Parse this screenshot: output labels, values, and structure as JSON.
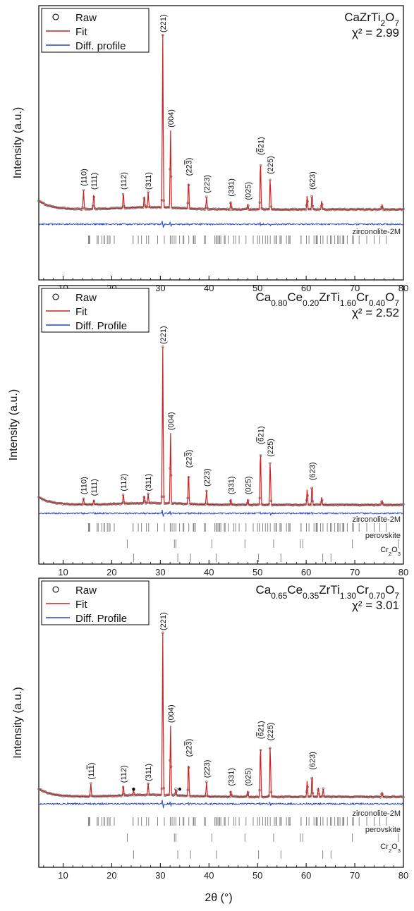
{
  "colors": {
    "raw": "#777777",
    "fit": "#cc2222",
    "diff": "#2244cc",
    "ticks": "#888888"
  },
  "xlabel": "2θ (°)",
  "ylabel": "Intensity (a.u.)",
  "chart_data": [
    {
      "type": "line",
      "title": "CaZrTi2O7",
      "chi2": "χ² = 2.99",
      "xlim": [
        5,
        80
      ],
      "xticks": [
        10,
        20,
        30,
        40,
        50,
        60,
        70,
        80
      ],
      "legend": [
        "Raw",
        "Fit",
        "Diff. profile"
      ],
      "peaks": [
        {
          "x": 14.2,
          "h": 0.11,
          "hkl": "(110)"
        },
        {
          "x": 16.3,
          "h": 0.09,
          "hkl": "(111)"
        },
        {
          "x": 22.4,
          "h": 0.09,
          "hkl": "(112)"
        },
        {
          "x": 26.7,
          "h": 0.07,
          "hkl": ""
        },
        {
          "x": 27.5,
          "h": 0.09,
          "hkl": "(311)"
        },
        {
          "x": 30.5,
          "h": 1.0,
          "hkl": "(221)"
        },
        {
          "x": 32.1,
          "h": 0.45,
          "hkl": "(004)"
        },
        {
          "x": 35.8,
          "h": 0.17,
          "hkl": "(22-3)"
        },
        {
          "x": 39.5,
          "h": 0.07,
          "hkl": "(223)"
        },
        {
          "x": 44.5,
          "h": 0.05,
          "hkl": "(331)"
        },
        {
          "x": 48.0,
          "h": 0.03,
          "hkl": "(025)"
        },
        {
          "x": 50.6,
          "h": 0.29,
          "hkl": "(-621)"
        },
        {
          "x": 52.6,
          "h": 0.18,
          "hkl": "(225)"
        },
        {
          "x": 60.2,
          "h": 0.08,
          "hkl": ""
        },
        {
          "x": 61.2,
          "h": 0.09,
          "hkl": "(623)"
        },
        {
          "x": 63.2,
          "h": 0.05,
          "hkl": ""
        },
        {
          "x": 75.6,
          "h": 0.03,
          "hkl": ""
        }
      ],
      "phases": [
        "zirconolite-2M"
      ]
    },
    {
      "type": "line",
      "title": "Ca0.80Ce0.20ZrTi1.60Cr0.40O7",
      "chi2": "χ² = 2.52",
      "xlim": [
        5,
        80
      ],
      "xticks": [
        10,
        20,
        30,
        40,
        50,
        60,
        70,
        80
      ],
      "legend": [
        "Raw",
        "Fit",
        "Diff. Profile"
      ],
      "peaks": [
        {
          "x": 14.2,
          "h": 0.04,
          "hkl": "(110)"
        },
        {
          "x": 16.3,
          "h": 0.03,
          "hkl": "(111)"
        },
        {
          "x": 22.4,
          "h": 0.06,
          "hkl": "(112)"
        },
        {
          "x": 26.7,
          "h": 0.05,
          "hkl": ""
        },
        {
          "x": 27.5,
          "h": 0.06,
          "hkl": "(311)"
        },
        {
          "x": 30.5,
          "h": 1.0,
          "hkl": "(221)"
        },
        {
          "x": 32.1,
          "h": 0.45,
          "hkl": "(004)"
        },
        {
          "x": 35.8,
          "h": 0.21,
          "hkl": "(22-3)"
        },
        {
          "x": 39.5,
          "h": 0.09,
          "hkl": "(223)"
        },
        {
          "x": 44.5,
          "h": 0.04,
          "hkl": "(331)"
        },
        {
          "x": 48.0,
          "h": 0.04,
          "hkl": "(025)"
        },
        {
          "x": 50.6,
          "h": 0.36,
          "hkl": "(-621)"
        },
        {
          "x": 52.6,
          "h": 0.28,
          "hkl": "(225)"
        },
        {
          "x": 60.2,
          "h": 0.1,
          "hkl": ""
        },
        {
          "x": 61.2,
          "h": 0.13,
          "hkl": "(623)"
        },
        {
          "x": 63.2,
          "h": 0.05,
          "hkl": ""
        },
        {
          "x": 75.6,
          "h": 0.03,
          "hkl": ""
        }
      ],
      "phases": [
        "zirconolite-2M",
        "perovskite",
        "Cr2O3"
      ]
    },
    {
      "type": "line",
      "title": "Ca0.65Ce0.35ZrTi1.30Cr0.70O7",
      "chi2": "χ² = 3.01",
      "xlim": [
        5,
        80
      ],
      "xticks": [
        10,
        20,
        30,
        40,
        50,
        60,
        70,
        80
      ],
      "legend": [
        "Raw",
        "Fit",
        "Diff. Profile"
      ],
      "peaks": [
        {
          "x": 15.7,
          "h": 0.08,
          "hkl": "(11-1)"
        },
        {
          "x": 22.4,
          "h": 0.06,
          "hkl": "(112)"
        },
        {
          "x": 24.5,
          "h": 0.03,
          "hkl": ""
        },
        {
          "x": 27.5,
          "h": 0.07,
          "hkl": "(311)"
        },
        {
          "x": 30.5,
          "h": 1.0,
          "hkl": "(221)"
        },
        {
          "x": 32.1,
          "h": 0.43,
          "hkl": "(004)"
        },
        {
          "x": 33.2,
          "h": 0.04,
          "hkl": ""
        },
        {
          "x": 35.8,
          "h": 0.22,
          "hkl": "(22-3)"
        },
        {
          "x": 39.5,
          "h": 0.09,
          "hkl": "(223)"
        },
        {
          "x": 44.5,
          "h": 0.04,
          "hkl": "(331)"
        },
        {
          "x": 48.0,
          "h": 0.04,
          "hkl": "(025)"
        },
        {
          "x": 50.6,
          "h": 0.33,
          "hkl": "(-621)"
        },
        {
          "x": 52.6,
          "h": 0.32,
          "hkl": "(225)"
        },
        {
          "x": 60.2,
          "h": 0.1,
          "hkl": ""
        },
        {
          "x": 61.2,
          "h": 0.14,
          "hkl": "(623)"
        },
        {
          "x": 62.5,
          "h": 0.06,
          "hkl": ""
        },
        {
          "x": 63.5,
          "h": 0.05,
          "hkl": ""
        },
        {
          "x": 75.6,
          "h": 0.03,
          "hkl": ""
        }
      ],
      "phases": [
        "zirconolite-2M",
        "perovskite",
        "Cr2O3"
      ],
      "markers": [
        {
          "x": 24.5,
          "symbol": "●"
        },
        {
          "x": 33.2,
          "symbol": "○"
        },
        {
          "x": 34.0,
          "symbol": "●"
        }
      ]
    }
  ]
}
